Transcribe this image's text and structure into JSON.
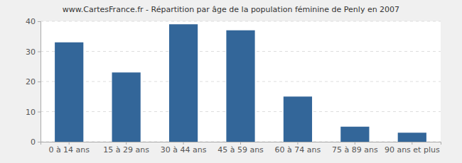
{
  "chart_data": {
    "type": "bar",
    "title": "www.CartesFrance.fr - Répartition par âge de la population féminine de Penly en 2007",
    "categories": [
      "0 à 14 ans",
      "15 à 29 ans",
      "30 à 44 ans",
      "45 à 59 ans",
      "60 à 74 ans",
      "75 à 89 ans",
      "90 ans et plus"
    ],
    "values": [
      33,
      23,
      39,
      37,
      15,
      5,
      3
    ],
    "color": "#336699",
    "ylim": [
      0,
      40
    ],
    "yticks": [
      0,
      10,
      20,
      30,
      40
    ],
    "grid": true
  }
}
